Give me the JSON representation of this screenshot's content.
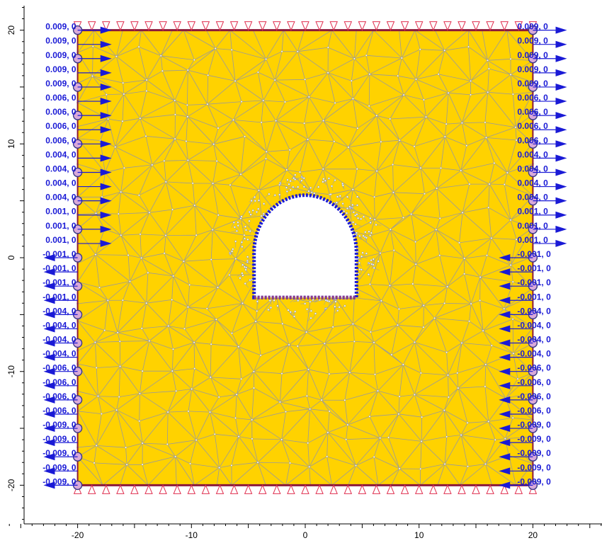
{
  "axes": {
    "x_ticks": [
      "-20",
      "-10",
      "0",
      "10",
      "20"
    ],
    "y_ticks": [
      "20",
      "10",
      "0",
      "-10",
      "-20"
    ],
    "x_range": [
      -26,
      26
    ],
    "y_range": [
      -24,
      22
    ]
  },
  "model": {
    "domain_x": [
      -20,
      20
    ],
    "domain_y": [
      -20,
      20
    ],
    "material_color": "#ffd200",
    "mesh_color": "#9a9a9a",
    "boundary_color": "#8b1a3a",
    "load_color": "#1a1ad6",
    "tunnel": {
      "floor_y": -3.5,
      "wall_x": [
        -4.5,
        4.5
      ],
      "springline_y": 0.5,
      "crown_y": 5.5
    }
  },
  "loads": {
    "left": [
      {
        "y": 20,
        "label": "0.009, 0"
      },
      {
        "y": 18.75,
        "label": "0.009, 0"
      },
      {
        "y": 17.5,
        "label": "0.009, 0"
      },
      {
        "y": 16.25,
        "label": "0.009, 0"
      },
      {
        "y": 15,
        "label": "0.009, 0"
      },
      {
        "y": 13.75,
        "label": "0.006, 0"
      },
      {
        "y": 12.5,
        "label": "0.006, 0"
      },
      {
        "y": 11.25,
        "label": "0.006, 0"
      },
      {
        "y": 10,
        "label": "0.006, 0"
      },
      {
        "y": 8.75,
        "label": "0.004, 0"
      },
      {
        "y": 7.5,
        "label": "0.004, 0"
      },
      {
        "y": 6.25,
        "label": "0.004, 0"
      },
      {
        "y": 5,
        "label": "0.004, 0"
      },
      {
        "y": 3.75,
        "label": "0.001, 0"
      },
      {
        "y": 2.5,
        "label": "0.001, 0"
      },
      {
        "y": 1.25,
        "label": "0.001, 0"
      },
      {
        "y": 0,
        "label": "-0.001, 0"
      },
      {
        "y": -1.25,
        "label": "-0.001, 0"
      },
      {
        "y": -2.5,
        "label": "-0.001, 0"
      },
      {
        "y": -3.75,
        "label": "-0.001, 0"
      },
      {
        "y": -5,
        "label": "-0.004, 0"
      },
      {
        "y": -6.25,
        "label": "-0.004, 0"
      },
      {
        "y": -7.5,
        "label": "-0.004, 0"
      },
      {
        "y": -8.75,
        "label": "-0.004, 0"
      },
      {
        "y": -10,
        "label": "-0.006, 0"
      },
      {
        "y": -11.25,
        "label": "-0.006, 0"
      },
      {
        "y": -12.5,
        "label": "-0.006, 0"
      },
      {
        "y": -13.75,
        "label": "-0.006, 0"
      },
      {
        "y": -15,
        "label": "-0.009, 0"
      },
      {
        "y": -16.25,
        "label": "-0.009, 0"
      },
      {
        "y": -17.5,
        "label": "-0.009, 0"
      },
      {
        "y": -18.75,
        "label": "-0.009, 0"
      },
      {
        "y": -20,
        "label": "-0.009, 0"
      }
    ],
    "right": [
      {
        "y": 20,
        "label": "0.009, 0"
      },
      {
        "y": 18.75,
        "label": "0.009, 0"
      },
      {
        "y": 17.5,
        "label": "0.009, 0"
      },
      {
        "y": 16.25,
        "label": "0.009, 0"
      },
      {
        "y": 15,
        "label": "0.009, 0"
      },
      {
        "y": 13.75,
        "label": "0.006, 0"
      },
      {
        "y": 12.5,
        "label": "0.006, 0"
      },
      {
        "y": 11.25,
        "label": "0.006, 0"
      },
      {
        "y": 10,
        "label": "0.006, 0"
      },
      {
        "y": 8.75,
        "label": "0.004, 0"
      },
      {
        "y": 7.5,
        "label": "0.004, 0"
      },
      {
        "y": 6.25,
        "label": "0.004, 0"
      },
      {
        "y": 5,
        "label": "0.004, 0"
      },
      {
        "y": 3.75,
        "label": "0.001, 0"
      },
      {
        "y": 2.5,
        "label": "0.001, 0"
      },
      {
        "y": 1.25,
        "label": "0.001, 0"
      },
      {
        "y": 0,
        "label": "-0.001, 0"
      },
      {
        "y": -1.25,
        "label": "-0.001, 0"
      },
      {
        "y": -2.5,
        "label": "-0.001, 0"
      },
      {
        "y": -3.75,
        "label": "-0.001, 0"
      },
      {
        "y": -5,
        "label": "-0.004, 0"
      },
      {
        "y": -6.25,
        "label": "-0.004, 0"
      },
      {
        "y": -7.5,
        "label": "-0.004, 0"
      },
      {
        "y": -8.75,
        "label": "-0.004, 0"
      },
      {
        "y": -10,
        "label": "-0.006, 0"
      },
      {
        "y": -11.25,
        "label": "-0.006, 0"
      },
      {
        "y": -12.5,
        "label": "-0.006, 0"
      },
      {
        "y": -13.75,
        "label": "-0.006, 0"
      },
      {
        "y": -15,
        "label": "-0.009, 0"
      },
      {
        "y": -16.25,
        "label": "-0.009, 0"
      },
      {
        "y": -17.5,
        "label": "-0.009, 0"
      },
      {
        "y": -18.75,
        "label": "-0.009, 0"
      },
      {
        "y": -20,
        "label": "-0.009, 0"
      }
    ]
  }
}
